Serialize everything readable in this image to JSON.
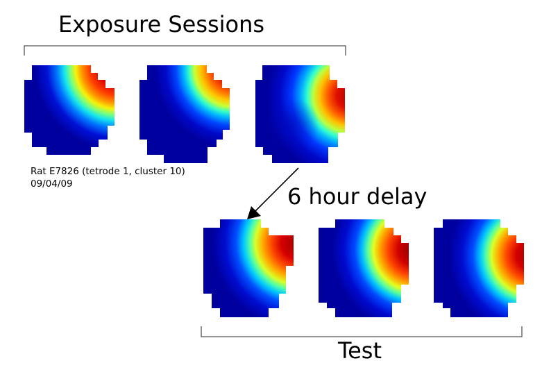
{
  "exposure_title": "Exposure Sessions",
  "rat_label": "Rat E7826 (tetrode 1, cluster 10)",
  "date_label": "09/04/09",
  "delay_label": "6 hour delay",
  "test_title": "Test",
  "colors": {
    "background": "#00009e",
    "field_peak": "#a50000",
    "bracket": "#555555",
    "arrow": "#000000"
  },
  "colormap": "jet"
}
